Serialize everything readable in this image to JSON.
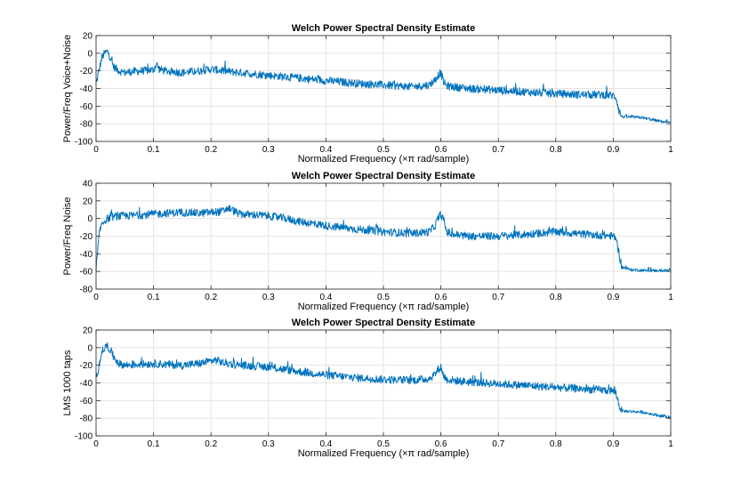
{
  "chart_data": [
    {
      "type": "line",
      "title": "Welch Power Spectral Density Estimate",
      "xlabel": "Normalized Frequency  (×π rad/sample)",
      "ylabel": "Power/Freq Voice+Noise",
      "xlim": [
        0,
        1
      ],
      "ylim": [
        -100,
        20
      ],
      "xticks": [
        "0",
        "0.1",
        "0.2",
        "0.3",
        "0.4",
        "0.5",
        "0.6",
        "0.7",
        "0.8",
        "0.9",
        "1"
      ],
      "yticks": [
        "20",
        "0",
        "-20",
        "-40",
        "-60",
        "-80",
        "-100"
      ],
      "grid": true,
      "color": "#0072bd",
      "series": [
        {
          "x": [
            0,
            0.005,
            0.01,
            0.015,
            0.02,
            0.025,
            0.03,
            0.04,
            0.05,
            0.06,
            0.08,
            0.1,
            0.105,
            0.11,
            0.12,
            0.15,
            0.18,
            0.2,
            0.22,
            0.25,
            0.3,
            0.35,
            0.4,
            0.45,
            0.5,
            0.55,
            0.58,
            0.59,
            0.595,
            0.6,
            0.605,
            0.61,
            0.62,
            0.65,
            0.7,
            0.75,
            0.8,
            0.85,
            0.88,
            0.9,
            0.905,
            0.91,
            0.915,
            0.92,
            0.95,
            0.98,
            1.0
          ],
          "values": [
            -35,
            -20,
            -5,
            0,
            2,
            -5,
            -15,
            -20,
            -22,
            -21,
            -20,
            -19,
            -12,
            -18,
            -20,
            -22,
            -20,
            -18,
            -20,
            -22,
            -25,
            -28,
            -31,
            -34,
            -36,
            -38,
            -36,
            -30,
            -25,
            -22,
            -33,
            -37,
            -38,
            -40,
            -42,
            -44,
            -46,
            -47,
            -47,
            -48,
            -50,
            -65,
            -72,
            -72,
            -73,
            -77,
            -79
          ]
        }
      ]
    },
    {
      "type": "line",
      "title": "Welch Power Spectral Density Estimate",
      "xlabel": "Normalized Frequency  (×π rad/sample)",
      "ylabel": "Power/Freq Noise",
      "xlim": [
        0,
        1
      ],
      "ylim": [
        -80,
        40
      ],
      "xticks": [
        "0",
        "0.1",
        "0.2",
        "0.3",
        "0.4",
        "0.5",
        "0.6",
        "0.7",
        "0.8",
        "0.9",
        "1"
      ],
      "yticks": [
        "40",
        "20",
        "0",
        "-20",
        "-40",
        "-60",
        "-80"
      ],
      "grid": true,
      "color": "#0072bd",
      "series": [
        {
          "x": [
            0,
            0.005,
            0.01,
            0.02,
            0.03,
            0.05,
            0.08,
            0.1,
            0.12,
            0.15,
            0.18,
            0.2,
            0.22,
            0.23,
            0.25,
            0.28,
            0.3,
            0.33,
            0.35,
            0.4,
            0.45,
            0.5,
            0.55,
            0.58,
            0.59,
            0.595,
            0.6,
            0.605,
            0.61,
            0.62,
            0.65,
            0.7,
            0.75,
            0.78,
            0.8,
            0.82,
            0.85,
            0.88,
            0.9,
            0.905,
            0.91,
            0.915,
            0.93,
            0.96,
            1.0
          ],
          "values": [
            -60,
            -20,
            -5,
            0,
            2,
            3,
            4,
            5,
            6,
            7,
            6,
            7,
            8,
            12,
            5,
            4,
            3,
            0,
            -3,
            -8,
            -12,
            -15,
            -17,
            -15,
            -8,
            0,
            5,
            -2,
            -15,
            -18,
            -20,
            -20,
            -18,
            -16,
            -15,
            -16,
            -18,
            -19,
            -20,
            -22,
            -40,
            -55,
            -58,
            -59,
            -59
          ]
        }
      ]
    },
    {
      "type": "line",
      "title": "Welch Power Spectral Density Estimate",
      "xlabel": "Normalized Frequency  (×π rad/sample)",
      "ylabel": "LMS 1000 taps",
      "xlim": [
        0,
        1
      ],
      "ylim": [
        -100,
        20
      ],
      "xticks": [
        "0",
        "0.1",
        "0.2",
        "0.3",
        "0.4",
        "0.5",
        "0.6",
        "0.7",
        "0.8",
        "0.9",
        "1"
      ],
      "yticks": [
        "20",
        "0",
        "-20",
        "-40",
        "-60",
        "-80",
        "-100"
      ],
      "grid": true,
      "color": "#0072bd",
      "series": [
        {
          "x": [
            0,
            0.005,
            0.01,
            0.015,
            0.02,
            0.025,
            0.03,
            0.04,
            0.05,
            0.07,
            0.1,
            0.12,
            0.15,
            0.18,
            0.2,
            0.21,
            0.22,
            0.25,
            0.3,
            0.35,
            0.4,
            0.45,
            0.5,
            0.55,
            0.58,
            0.59,
            0.595,
            0.6,
            0.605,
            0.61,
            0.62,
            0.65,
            0.7,
            0.75,
            0.8,
            0.85,
            0.88,
            0.9,
            0.905,
            0.91,
            0.915,
            0.92,
            0.95,
            0.98,
            1.0
          ],
          "values": [
            -35,
            -20,
            -5,
            0,
            2,
            -3,
            -10,
            -18,
            -20,
            -19,
            -18,
            -19,
            -20,
            -18,
            -15,
            -14,
            -17,
            -20,
            -22,
            -27,
            -31,
            -34,
            -36,
            -37,
            -35,
            -30,
            -25,
            -22,
            -32,
            -36,
            -37,
            -39,
            -41,
            -43,
            -45,
            -47,
            -48,
            -49,
            -52,
            -65,
            -72,
            -72,
            -73,
            -77,
            -79
          ]
        }
      ]
    }
  ]
}
